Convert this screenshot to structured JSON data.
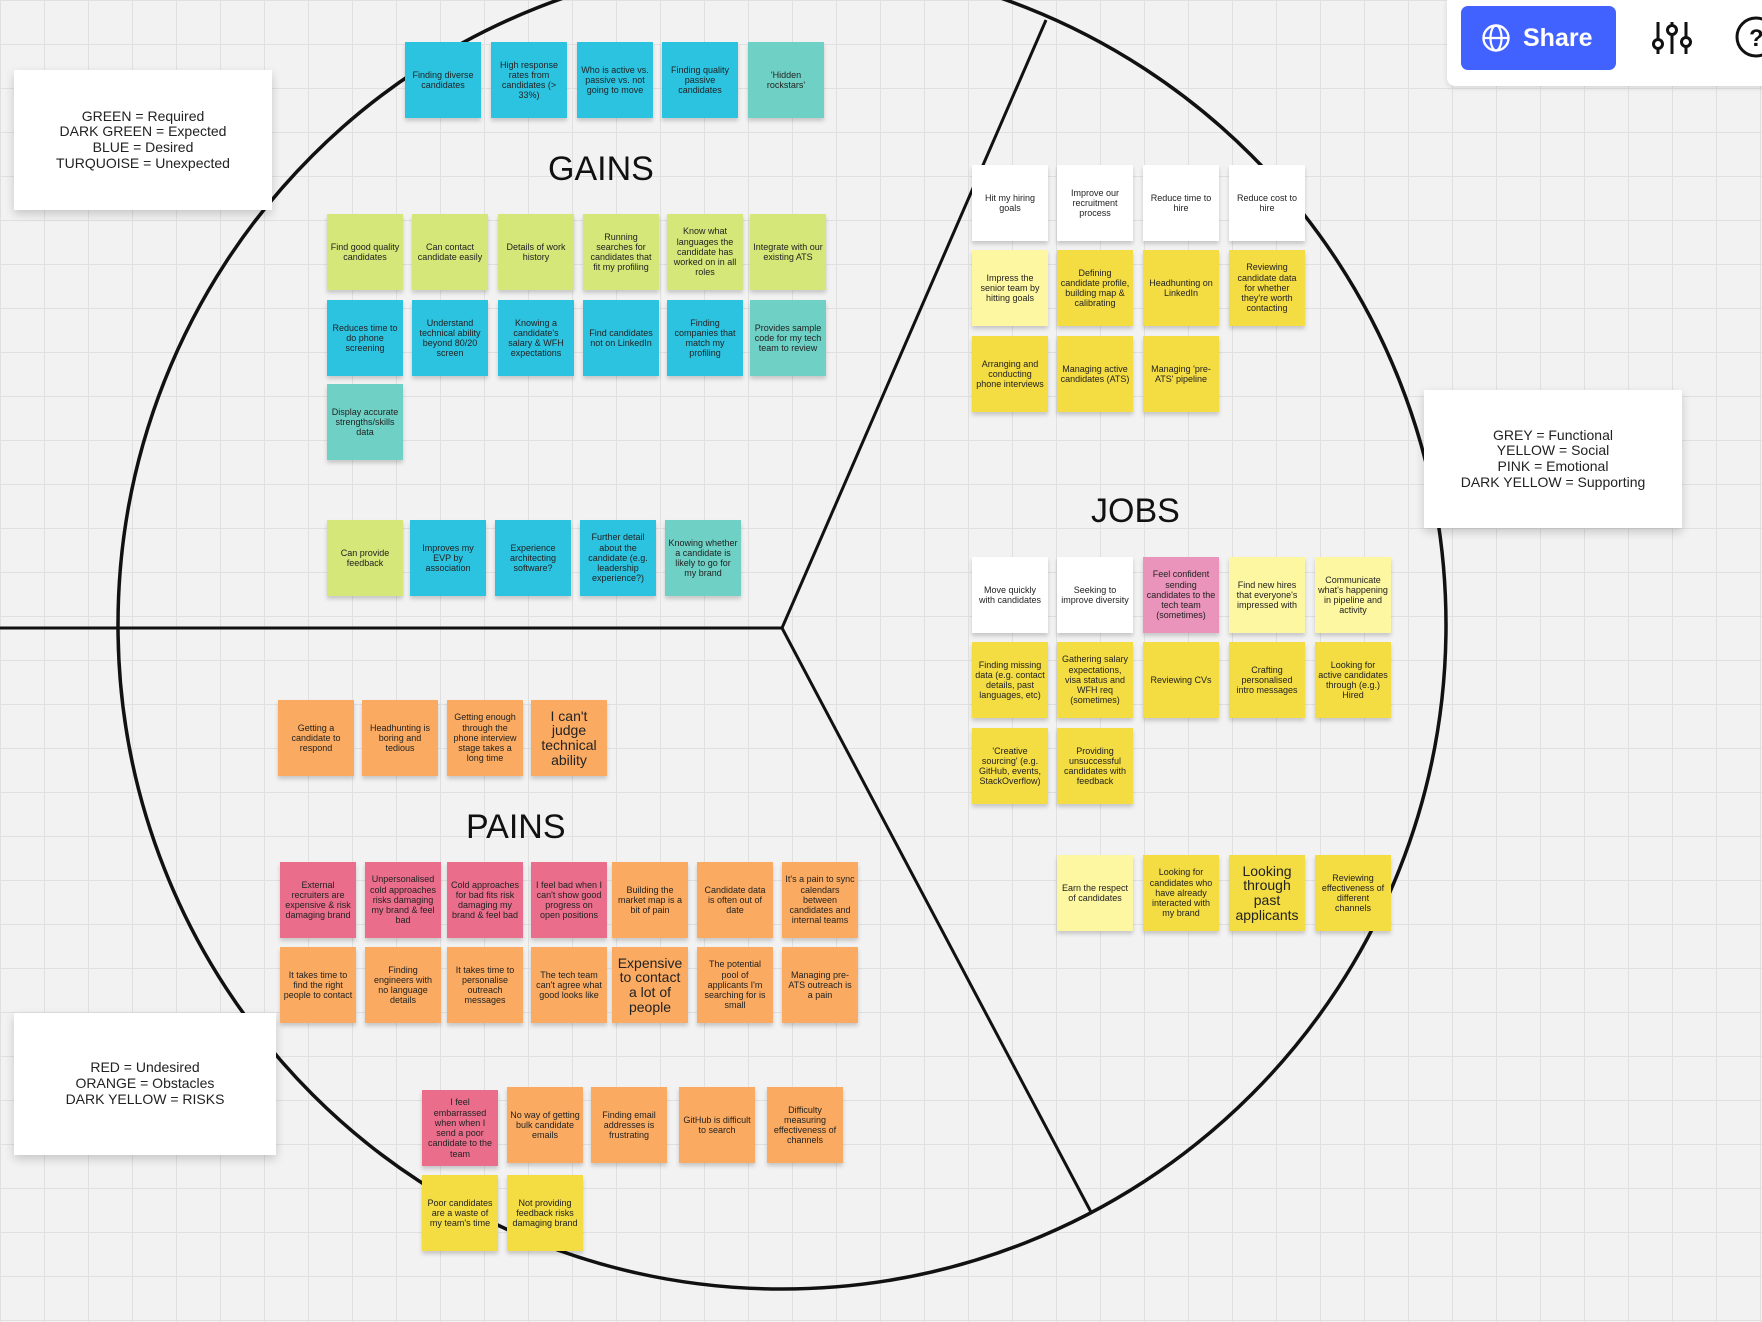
{
  "colors": {
    "light_green": "#d5e779",
    "blue": "#2cc3e1",
    "turquoise": "#6fd1c5",
    "white": "#ffffff",
    "light_yellow": "#fef7a1",
    "yellow": "#f4dc43",
    "pink": "#ea94bb",
    "orange": "#fbab61",
    "red": "#ea6e8c",
    "accent": "#4262ff"
  },
  "toolbar": {
    "share_label": "Share",
    "share_icon": "globe-icon",
    "settings_icon": "sliders-icon",
    "help_icon": "help-icon"
  },
  "sections": {
    "gains": "GAINS",
    "jobs": "JOBS",
    "pains": "PAINS"
  },
  "legends": {
    "gains": "GREEN = Required\nDARK GREEN = Expected\nBLUE = Desired\nTURQUOISE = Unexpected",
    "jobs": "GREY = Functional\nYELLOW = Social\nPINK = Emotional\nDARK YELLOW = Supporting",
    "pains": "RED = Undesired\nORANGE = Obstacles\nDARK YELLOW = RISKS"
  },
  "notes": {
    "gains": [
      {
        "text": "Finding diverse candidates",
        "color": "blue"
      },
      {
        "text": "High response rates from candidates (> 33%)",
        "color": "blue"
      },
      {
        "text": "Who is active vs. passive vs. not going to move",
        "color": "blue"
      },
      {
        "text": "Finding quality passive candidates",
        "color": "blue"
      },
      {
        "text": "'Hidden rockstars'",
        "color": "turquoise"
      },
      {
        "text": "Find good quality candidates",
        "color": "light_green"
      },
      {
        "text": "Can contact candidate easily",
        "color": "light_green"
      },
      {
        "text": "Details of work history",
        "color": "light_green"
      },
      {
        "text": "Running searches for candidates that fit my profiling",
        "color": "light_green"
      },
      {
        "text": "Know what languages the candidate has worked on in all roles",
        "color": "light_green"
      },
      {
        "text": "Integrate with our existing ATS",
        "color": "light_green"
      },
      {
        "text": "Reduces time to do phone screening",
        "color": "blue"
      },
      {
        "text": "Understand technical ability beyond 80/20 screen",
        "color": "blue"
      },
      {
        "text": "Knowing a candidate's salary & WFH expectations",
        "color": "blue"
      },
      {
        "text": "Find candidates not on LinkedIn",
        "color": "blue"
      },
      {
        "text": "Finding companies that match my profiling",
        "color": "blue"
      },
      {
        "text": "Provides sample code for my tech team to review",
        "color": "turquoise"
      },
      {
        "text": "Display accurate strengths/skills data",
        "color": "turquoise"
      },
      {
        "text": "Can provide feedback",
        "color": "light_green"
      },
      {
        "text": "Improves my EVP by association",
        "color": "blue"
      },
      {
        "text": "Experience architecting software?",
        "color": "blue"
      },
      {
        "text": "Further detail about the candidate (e.g. leadership experience?)",
        "color": "blue"
      },
      {
        "text": "Knowing whether a candidate is likely to go for my brand",
        "color": "turquoise"
      }
    ],
    "jobs": [
      {
        "text": "Hit my hiring goals",
        "color": "white"
      },
      {
        "text": "Improve our recruitment process",
        "color": "white"
      },
      {
        "text": "Reduce time to hire",
        "color": "white"
      },
      {
        "text": "Reduce cost to hire",
        "color": "white"
      },
      {
        "text": "Impress the senior team by hitting goals",
        "color": "light_yellow"
      },
      {
        "text": "Defining candidate profile, building map & calibrating",
        "color": "yellow"
      },
      {
        "text": "Headhunting on LinkedIn",
        "color": "yellow"
      },
      {
        "text": "Reviewing candidate data for whether they're worth contacting",
        "color": "yellow"
      },
      {
        "text": "Arranging and conducting phone interviews",
        "color": "yellow"
      },
      {
        "text": "Managing active candidates (ATS)",
        "color": "yellow"
      },
      {
        "text": "Managing 'pre-ATS' pipeline",
        "color": "yellow"
      },
      {
        "text": "Move quickly with candidates",
        "color": "white"
      },
      {
        "text": "Seeking to improve diversity",
        "color": "white"
      },
      {
        "text": "Feel confident sending candidates to the tech team (sometimes)",
        "color": "pink"
      },
      {
        "text": "Find new hires that everyone's impressed with",
        "color": "light_yellow"
      },
      {
        "text": "Communicate what's happening in pipeline and activity",
        "color": "light_yellow"
      },
      {
        "text": "Finding missing data (e.g. contact details, past languages, etc)",
        "color": "yellow"
      },
      {
        "text": "Gathering salary expectations, visa status and WFH req (sometimes)",
        "color": "yellow"
      },
      {
        "text": "Reviewing CVs",
        "color": "yellow"
      },
      {
        "text": "Crafting personalised intro messages",
        "color": "yellow"
      },
      {
        "text": "Looking for active candidates through (e.g.) Hired",
        "color": "yellow"
      },
      {
        "text": "'Creative sourcing' (e.g. GitHub, events, StackOverflow)",
        "color": "yellow"
      },
      {
        "text": "Providing unsuccessful candidates with feedback",
        "color": "yellow"
      },
      {
        "text": "Earn the respect of candidates",
        "color": "light_yellow"
      },
      {
        "text": "Looking for candidates who have already interacted with my brand",
        "color": "yellow"
      },
      {
        "text": "Looking through past applicants",
        "color": "yellow"
      },
      {
        "text": "Reviewing effectiveness of different channels",
        "color": "yellow"
      }
    ],
    "pains": [
      {
        "text": "Getting a candidate to respond",
        "color": "orange"
      },
      {
        "text": "Headhunting is boring and tedious",
        "color": "orange"
      },
      {
        "text": "Getting enough through the phone interview stage takes a long time",
        "color": "orange"
      },
      {
        "text": "I can't judge technical ability",
        "color": "orange"
      },
      {
        "text": "External recruiters are expensive & risk damaging brand",
        "color": "red"
      },
      {
        "text": "Unpersonalised cold approaches risks damaging my brand & feel bad",
        "color": "red"
      },
      {
        "text": "Cold approaches for bad fits risk damaging my brand & feel bad",
        "color": "red"
      },
      {
        "text": "I feel bad when I can't show good progress on open positions",
        "color": "red"
      },
      {
        "text": "Building the market map is a bit of pain",
        "color": "orange"
      },
      {
        "text": "Candidate data is often out of date",
        "color": "orange"
      },
      {
        "text": "It's a pain to sync calendars between candidates and internal teams",
        "color": "orange"
      },
      {
        "text": "It takes time to find the right people to contact",
        "color": "orange"
      },
      {
        "text": "Finding engineers with no language details",
        "color": "orange"
      },
      {
        "text": "It takes time to personalise outreach messages",
        "color": "orange"
      },
      {
        "text": "The tech team can't agree what good looks like",
        "color": "orange"
      },
      {
        "text": "Expensive to contact a lot of people",
        "color": "orange"
      },
      {
        "text": "The potential pool of applicants I'm searching for is small",
        "color": "orange"
      },
      {
        "text": "Managing pre-ATS outreach is a pain",
        "color": "orange"
      },
      {
        "text": "I feel embarrassed when when I send a poor candidate to the team",
        "color": "red"
      },
      {
        "text": "No way of getting bulk candidate emails",
        "color": "orange"
      },
      {
        "text": "Finding email addresses is frustrating",
        "color": "orange"
      },
      {
        "text": "GitHub is difficult to search",
        "color": "orange"
      },
      {
        "text": "Difficulty measuring effectiveness of channels",
        "color": "orange"
      },
      {
        "text": "Poor candidates are a waste of my team's time",
        "color": "yellow"
      },
      {
        "text": "Not providing feedback risks damaging brand",
        "color": "yellow"
      }
    ]
  }
}
